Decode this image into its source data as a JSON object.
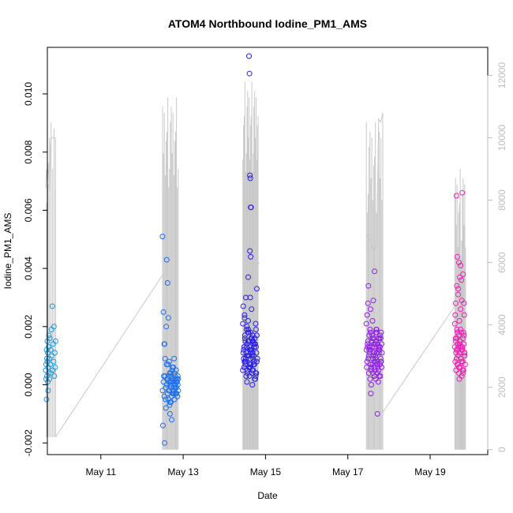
{
  "chart_data": {
    "type": "scatter",
    "title": "ATOM4 Northbound Iodine_PM1_AMS",
    "xlabel": "Date",
    "ylabel": "Iodine_PM1_AMS",
    "xlim": [
      9.7,
      20.4
    ],
    "ylim": [
      -0.0024,
      0.0116
    ],
    "y2lim": [
      -160,
      12900
    ],
    "x_ticks": [
      {
        "value": 11,
        "label": "May 11"
      },
      {
        "value": 13,
        "label": "May 13"
      },
      {
        "value": 15,
        "label": "May 15"
      },
      {
        "value": 17,
        "label": "May 17"
      },
      {
        "value": 19,
        "label": "May 19"
      }
    ],
    "y_ticks": [
      {
        "value": -0.002,
        "label": "-0.002"
      },
      {
        "value": 0.0,
        "label": "0.000"
      },
      {
        "value": 0.002,
        "label": "0.002"
      },
      {
        "value": 0.004,
        "label": "0.004"
      },
      {
        "value": 0.006,
        "label": "0.006"
      },
      {
        "value": 0.008,
        "label": "0.008"
      },
      {
        "value": 0.01,
        "label": "0.010"
      }
    ],
    "y2_ticks": [
      {
        "value": 0,
        "label": "0"
      },
      {
        "value": 2000,
        "label": "2000"
      },
      {
        "value": 4000,
        "label": "4000"
      },
      {
        "value": 6000,
        "label": "6000"
      },
      {
        "value": 8000,
        "label": "8000"
      },
      {
        "value": 10000,
        "label": "10000"
      },
      {
        "value": 12000,
        "label": "12000"
      }
    ],
    "colors": {
      "line": "#c8c8c8",
      "right_axis": "#bdbdbd",
      "group_colors": [
        "#1e9be0",
        "#1a6ef0",
        "#2a1ee8",
        "#8e1ee8",
        "#f01eb4"
      ]
    },
    "groups": [
      {
        "x": [
          9.66,
          9.67,
          9.67,
          9.68,
          9.68,
          9.69,
          9.69,
          9.7,
          9.7,
          9.71,
          9.71,
          9.72,
          9.72,
          9.73,
          9.73,
          9.74,
          9.74,
          9.75,
          9.76,
          9.77,
          9.78,
          9.79,
          9.8,
          9.81,
          9.82,
          9.83,
          9.84,
          9.85,
          9.86,
          9.87,
          9.88,
          9.89,
          9.9
        ],
        "y": [
          0.0005,
          0.0007,
          0.0002,
          0.0012,
          -0.0005,
          0.0009,
          0.0003,
          0.0015,
          0.0008,
          0.0001,
          0.0011,
          0.0006,
          -0.0002,
          0.0013,
          0.0004,
          0.0017,
          0.0009,
          0.0002,
          0.0016,
          0.0007,
          0.0012,
          0.0004,
          0.0019,
          0.001,
          0.0027,
          0.0005,
          0.0014,
          0.0008,
          0.002,
          0.0003,
          0.0011,
          0.0006,
          0.0015
        ]
      },
      {
        "x": [
          12.5,
          12.52,
          12.54,
          12.56,
          12.58,
          12.6,
          12.62,
          12.63,
          12.64,
          12.65,
          12.66,
          12.67,
          12.68,
          12.69,
          12.7,
          12.71,
          12.72,
          12.73,
          12.74,
          12.75,
          12.76,
          12.77,
          12.78,
          12.79,
          12.8,
          12.81,
          12.82,
          12.83,
          12.84,
          12.85,
          12.86,
          12.87,
          12.88,
          12.5,
          12.52,
          12.54,
          12.56,
          12.58,
          12.6,
          12.62,
          12.64,
          12.66,
          12.68,
          12.7,
          12.72,
          12.74,
          12.76,
          12.78,
          12.8,
          12.82,
          12.84,
          12.86,
          12.88,
          12.51,
          12.55,
          12.59,
          12.63,
          12.67,
          12.71,
          12.75,
          12.79,
          12.83,
          12.87,
          12.53,
          12.57,
          12.61,
          12.65,
          12.69,
          12.73,
          12.77,
          12.81,
          12.85,
          12.55,
          12.6,
          12.65,
          12.7
        ],
        "y": [
          -0.0002,
          0.0001,
          -0.0004,
          0.0003,
          -0.0001,
          0.0,
          -0.0003,
          0.0002,
          -0.0005,
          0.0001,
          -0.0002,
          0.0004,
          -0.0006,
          0.0,
          -0.0001,
          0.0003,
          -0.0004,
          0.0002,
          0.0006,
          -0.0003,
          0.0001,
          -0.0002,
          0.0009,
          -0.0005,
          0.0,
          0.0002,
          -0.0001,
          0.0005,
          -0.0003,
          0.0001,
          -0.0004,
          0.0003,
          -0.0002,
          0.0051,
          0.0025,
          0.0014,
          0.0009,
          -0.0008,
          0.0043,
          0.0035,
          0.0023,
          0.0008,
          -0.001,
          0.0004,
          -0.0012,
          0.0002,
          0.0006,
          -0.0001,
          0.0003,
          -0.0003,
          0.0001,
          -0.0004,
          0.0002,
          -0.0014,
          -0.002,
          0.002,
          0.0007,
          -0.0007,
          0.0001,
          -0.0002,
          0.0004,
          -0.0001,
          0.0,
          0.0003,
          -0.0005,
          0.0002,
          -0.0002,
          0.0001,
          0.0005,
          -0.0003,
          0.0,
          0.0002,
          0.0014,
          0.0007,
          0.0003,
          -0.0006
        ]
      },
      {
        "x": [
          14.45,
          14.47,
          14.49,
          14.51,
          14.53,
          14.55,
          14.57,
          14.59,
          14.61,
          14.63,
          14.65,
          14.67,
          14.69,
          14.71,
          14.73,
          14.75,
          14.77,
          14.79,
          14.46,
          14.48,
          14.5,
          14.52,
          14.54,
          14.56,
          14.58,
          14.6,
          14.62,
          14.64,
          14.66,
          14.68,
          14.7,
          14.72,
          14.74,
          14.76,
          14.78,
          14.8,
          14.45,
          14.48,
          14.51,
          14.54,
          14.57,
          14.6,
          14.63,
          14.66,
          14.69,
          14.72,
          14.75,
          14.78,
          14.47,
          14.5,
          14.53,
          14.56,
          14.59,
          14.62,
          14.65,
          14.68,
          14.71,
          14.74,
          14.77,
          14.49,
          14.52,
          14.55,
          14.58,
          14.61,
          14.64,
          14.67,
          14.7,
          14.73,
          14.76,
          14.79,
          14.46,
          14.49,
          14.52,
          14.55,
          14.58,
          14.61,
          14.64,
          14.67,
          14.7,
          14.73,
          14.76,
          14.79,
          14.6,
          14.61,
          14.62,
          14.63,
          14.64,
          14.65,
          14.62,
          14.64,
          14.58,
          14.66,
          14.63,
          14.7,
          14.55,
          14.68,
          14.5
        ],
        "y": [
          0.0005,
          0.0012,
          0.0008,
          0.0015,
          0.0003,
          0.001,
          0.0018,
          0.0006,
          0.0013,
          0.0009,
          0.0016,
          0.0004,
          0.0011,
          0.0007,
          0.0014,
          0.0002,
          0.0019,
          0.0008,
          0.0011,
          0.0006,
          0.0017,
          0.0009,
          0.0013,
          0.0004,
          0.0015,
          0.001,
          0.0007,
          0.0018,
          0.0012,
          0.0005,
          0.0014,
          0.0008,
          0.0016,
          0.0003,
          0.0011,
          0.0009,
          0.0021,
          0.0013,
          0.0007,
          0.0019,
          0.001,
          0.0015,
          0.0006,
          0.0012,
          0.0017,
          0.0008,
          0.0014,
          0.0004,
          0.0009,
          0.0016,
          0.0011,
          0.0005,
          0.0018,
          0.0012,
          0.0007,
          0.0015,
          0.001,
          0.0002,
          0.0013,
          0.0023,
          0.0008,
          0.0014,
          0.0019,
          0.0006,
          0.0011,
          0.0016,
          0.0009,
          0.0013,
          0.0004,
          0.0017,
          0.0027,
          0.0024,
          0.003,
          0.002,
          0.0022,
          0.0003,
          0.0012,
          0.001,
          0.0015,
          0.0007,
          0.0021,
          0.0033,
          0.0113,
          0.0107,
          0.0072,
          0.0071,
          0.0061,
          0.0061,
          0.0046,
          0.0044,
          0.0037,
          0.0026,
          0.003,
          0.0005,
          0.0001,
          0.0,
          0.0008
        ]
      },
      {
        "x": [
          17.45,
          17.47,
          17.49,
          17.51,
          17.53,
          17.55,
          17.57,
          17.59,
          17.61,
          17.63,
          17.65,
          17.67,
          17.69,
          17.71,
          17.73,
          17.75,
          17.77,
          17.79,
          17.81,
          17.83,
          17.46,
          17.48,
          17.5,
          17.52,
          17.54,
          17.56,
          17.58,
          17.6,
          17.62,
          17.64,
          17.66,
          17.68,
          17.7,
          17.72,
          17.74,
          17.76,
          17.78,
          17.8,
          17.82,
          17.45,
          17.48,
          17.51,
          17.54,
          17.57,
          17.6,
          17.63,
          17.66,
          17.69,
          17.72,
          17.75,
          17.78,
          17.81,
          17.47,
          17.5,
          17.53,
          17.56,
          17.59,
          17.62,
          17.65,
          17.68,
          17.71,
          17.74,
          17.77,
          17.8,
          17.49,
          17.52,
          17.55,
          17.58,
          17.61,
          17.64,
          17.67,
          17.7,
          17.73,
          17.76,
          17.79,
          17.82,
          17.5,
          17.55,
          17.6,
          17.65,
          17.7,
          17.75,
          17.8,
          17.65,
          17.62,
          17.57,
          17.72,
          17.68
        ],
        "y": [
          0.0012,
          0.0008,
          0.0015,
          0.0004,
          0.0011,
          0.0018,
          0.0006,
          0.0013,
          0.0009,
          0.0016,
          0.0003,
          0.001,
          0.0019,
          0.0007,
          0.0014,
          0.0005,
          0.0012,
          0.0017,
          0.0008,
          0.0011,
          0.0006,
          0.0013,
          0.0009,
          0.0017,
          0.0002,
          0.0012,
          0.0015,
          0.0007,
          0.001,
          0.0014,
          0.0005,
          0.0018,
          0.0011,
          0.0008,
          0.0016,
          0.0003,
          0.0013,
          0.0009,
          0.0006,
          0.0021,
          0.0014,
          0.001,
          0.0019,
          0.0005,
          0.0016,
          0.0011,
          0.0008,
          0.0015,
          0.0004,
          0.0012,
          0.0007,
          0.0018,
          0.0024,
          0.0009,
          0.0013,
          -0.0003,
          0.0017,
          0.001,
          0.0006,
          0.0014,
          0.0011,
          0.0001,
          0.0016,
          0.0008,
          0.0028,
          0.0012,
          0.0007,
          0.0015,
          0.0004,
          0.0013,
          0.0009,
          0.0018,
          0.0006,
          0.0011,
          0.0003,
          0.0014,
          0.0034,
          0.0026,
          0.0022,
          0.0008,
          0.0019,
          0.0013,
          0.0016,
          0.0039,
          0.0029,
          0.0,
          -0.001,
          0.0002
        ]
      },
      {
        "x": [
          19.6,
          19.61,
          19.62,
          19.63,
          19.64,
          19.65,
          19.66,
          19.67,
          19.68,
          19.69,
          19.7,
          19.71,
          19.72,
          19.73,
          19.74,
          19.75,
          19.76,
          19.77,
          19.78,
          19.79,
          19.8,
          19.81,
          19.82,
          19.83,
          19.84,
          19.85,
          19.6,
          19.62,
          19.64,
          19.66,
          19.68,
          19.7,
          19.72,
          19.74,
          19.76,
          19.78,
          19.8,
          19.82,
          19.84,
          19.61,
          19.63,
          19.65,
          19.67,
          19.69,
          19.71,
          19.73,
          19.75,
          19.77,
          19.79,
          19.81,
          19.83,
          19.62,
          19.65,
          19.68,
          19.71,
          19.74,
          19.77,
          19.8,
          19.83,
          19.64,
          19.7,
          19.76,
          19.66,
          19.72,
          19.78,
          19.82,
          19.68,
          19.74
        ],
        "y": [
          0.0013,
          0.0008,
          0.0016,
          0.0005,
          0.0012,
          0.0019,
          0.0007,
          0.0014,
          0.001,
          0.0017,
          0.0004,
          0.0011,
          0.0015,
          0.0006,
          0.0013,
          0.0009,
          0.0018,
          0.0003,
          0.0012,
          0.0008,
          0.0016,
          0.0005,
          0.0014,
          0.001,
          0.0011,
          0.0007,
          0.0021,
          0.0015,
          0.0009,
          0.0018,
          0.0012,
          0.0006,
          0.0014,
          0.0019,
          0.0008,
          0.0013,
          0.0004,
          0.0017,
          0.001,
          0.0024,
          0.0011,
          0.0016,
          0.0007,
          0.0013,
          0.0002,
          0.0015,
          0.0009,
          0.0012,
          0.0005,
          0.0018,
          0.0011,
          0.0028,
          0.0034,
          0.0031,
          0.0022,
          0.0026,
          0.0029,
          0.0038,
          0.0024,
          0.0065,
          0.0042,
          0.0036,
          0.0044,
          0.0037,
          0.0066,
          0.0028,
          0.0033,
          0.0041
        ]
      }
    ],
    "line_y2": {
      "segments": [
        {
          "x": [
            9.66,
            9.67,
            9.68,
            9.7,
            9.72,
            9.75,
            9.78,
            9.8,
            9.82,
            9.84,
            9.86,
            9.88,
            9.9
          ],
          "y": [
            8400,
            8500,
            9000,
            8600,
            9200,
            8300,
            9800,
            10000,
            10000,
            10000,
            10000,
            10000,
            10000
          ]
        },
        {
          "x": [
            9.9,
            9.9
          ],
          "y": [
            10000,
            400
          ]
        },
        {
          "x": [
            9.9,
            12.5
          ],
          "y": [
            400,
            5600
          ]
        },
        {
          "x": [
            14.45,
            14.85
          ],
          "y": [
            5200,
            6000
          ]
        },
        {
          "x": [
            17.45,
            17.55,
            17.6,
            17.65,
            17.7,
            17.75,
            17.8,
            17.85
          ],
          "y": [
            6900,
            6700,
            6500,
            6400,
            6600,
            10600,
            10500,
            10800
          ]
        },
        {
          "x": [
            17.85,
            17.85
          ],
          "y": [
            10800,
            1200
          ]
        },
        {
          "x": [
            17.85,
            19.6
          ],
          "y": [
            1200,
            4600
          ]
        }
      ]
    }
  }
}
